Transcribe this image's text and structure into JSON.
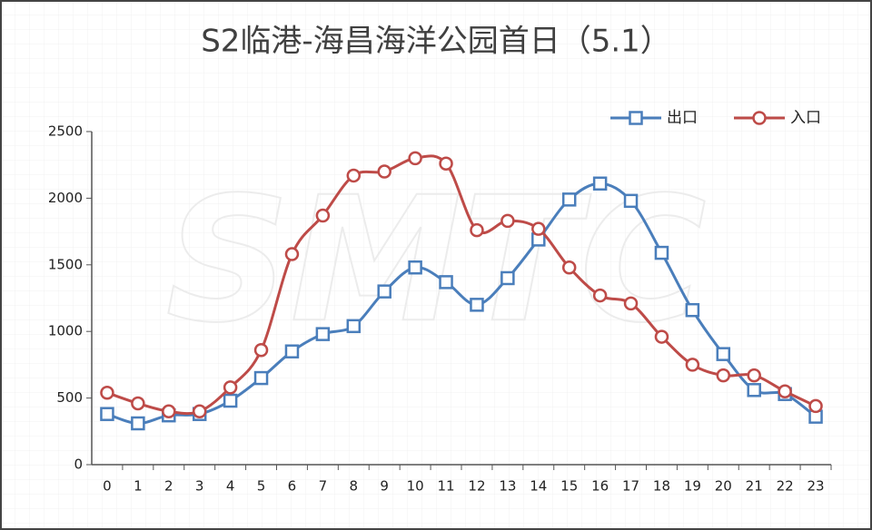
{
  "chart_data": {
    "type": "line",
    "title": "S2临港-海昌海洋公园首日（5.1）",
    "watermark": "SMTC",
    "categories": [
      "0",
      "1",
      "2",
      "3",
      "4",
      "5",
      "6",
      "7",
      "8",
      "9",
      "10",
      "11",
      "12",
      "13",
      "14",
      "15",
      "16",
      "17",
      "18",
      "19",
      "20",
      "21",
      "22",
      "23"
    ],
    "series": [
      {
        "name": "出口",
        "color": "#4a7ebb",
        "marker": "square",
        "values": [
          380,
          310,
          370,
          380,
          480,
          650,
          850,
          980,
          1040,
          1300,
          1480,
          1370,
          1200,
          1400,
          1690,
          1990,
          2110,
          1980,
          1590,
          1160,
          830,
          560,
          530,
          360
        ]
      },
      {
        "name": "入口",
        "color": "#be4b48",
        "marker": "circle",
        "values": [
          540,
          460,
          400,
          400,
          580,
          860,
          1580,
          1870,
          2170,
          2200,
          2300,
          2260,
          1760,
          1830,
          1770,
          1480,
          1270,
          1210,
          960,
          750,
          670,
          670,
          550,
          440
        ]
      }
    ],
    "ylim": [
      0,
      2500
    ],
    "yticks": [
      0,
      500,
      1000,
      1500,
      2000,
      2500
    ],
    "legend": "top-right",
    "grid": false,
    "smooth": true
  }
}
